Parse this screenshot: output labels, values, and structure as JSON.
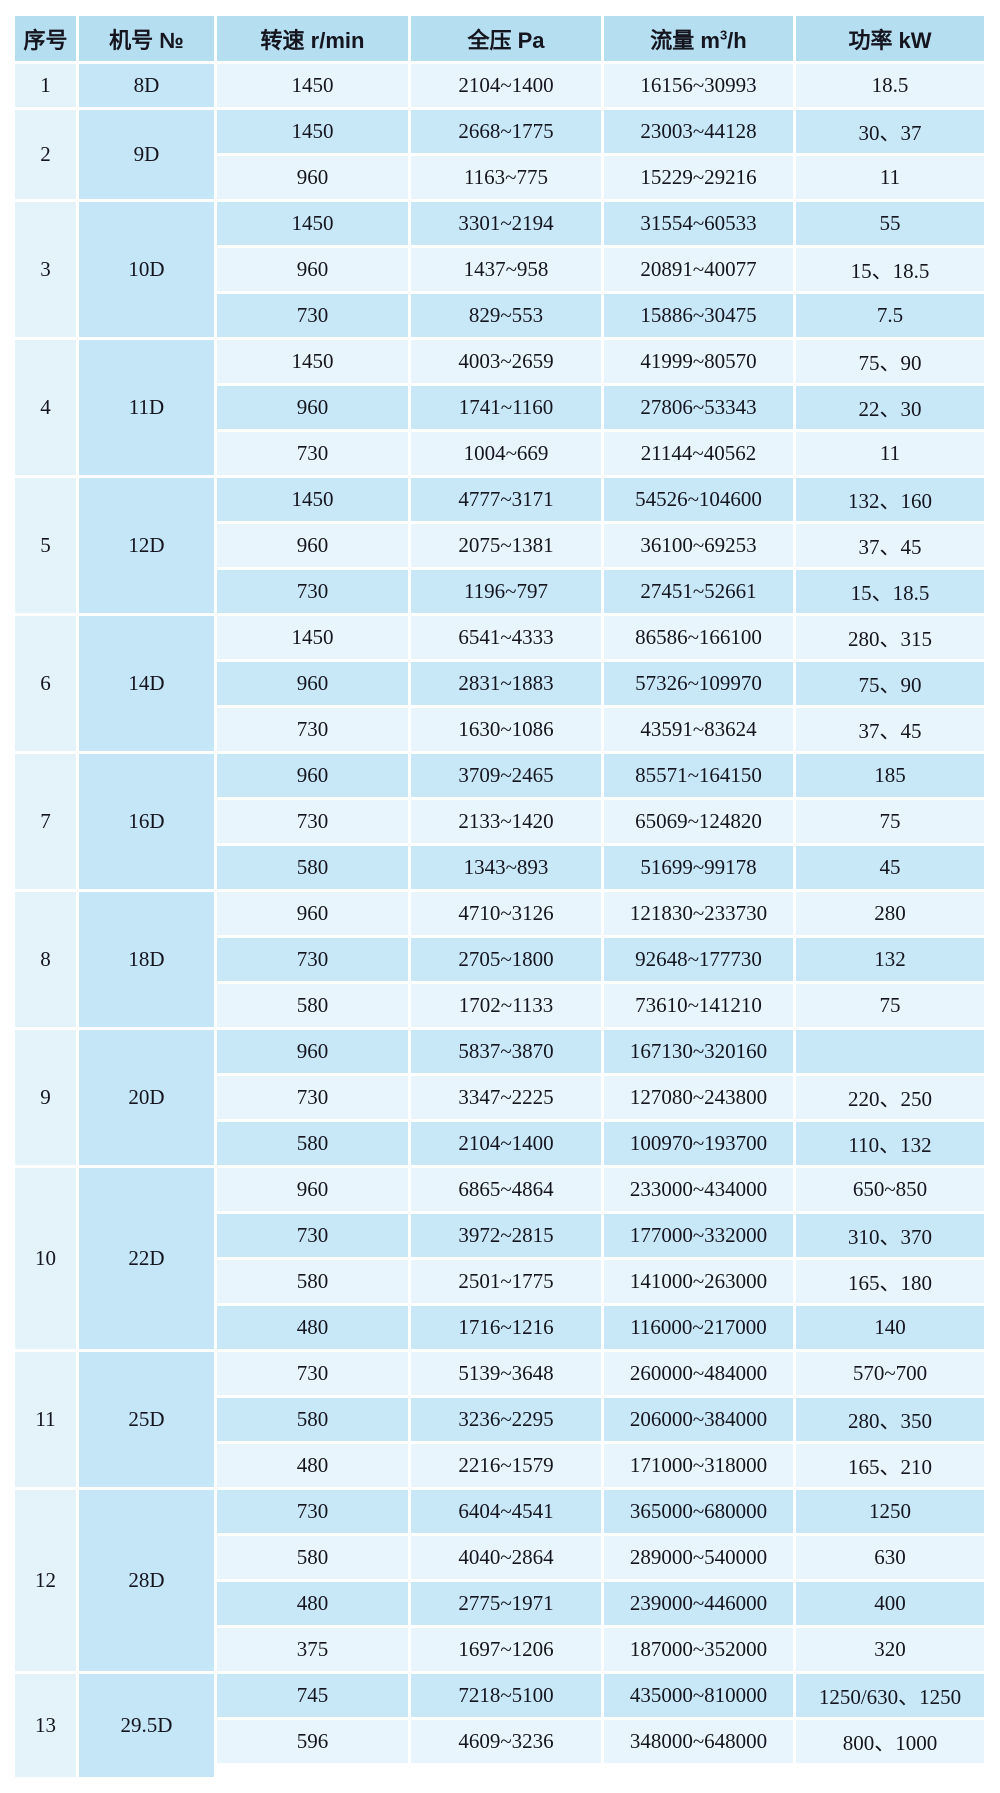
{
  "table": {
    "name": "fan-specification-table",
    "columns": {
      "serial": "序号",
      "model": "机号 №",
      "speed": "转速 r/min",
      "pressure": "全压 Pa",
      "flow_prefix": "流量 m",
      "flow_sup": "3",
      "flow_suffix": "/h",
      "power": "功率 kW"
    },
    "colors": {
      "header_bg": "#b6def1",
      "serial_col_bg": "#e4f2fa",
      "model_col_bg": "#c4e6f7",
      "row_light_bg": "#e9f5fc",
      "row_medium_bg": "#c8e8f8",
      "grid_gap": "#ffffff",
      "text": "#15151f"
    },
    "groups": [
      {
        "serial": "1",
        "model": "8D",
        "rows": [
          {
            "speed": "1450",
            "pressure": "2104~1400",
            "flow": "16156~30993",
            "power": "18.5"
          }
        ]
      },
      {
        "serial": "2",
        "model": "9D",
        "rows": [
          {
            "speed": "1450",
            "pressure": "2668~1775",
            "flow": "23003~44128",
            "power": "30、37"
          },
          {
            "speed": "960",
            "pressure": "1163~775",
            "flow": "15229~29216",
            "power": "11"
          }
        ]
      },
      {
        "serial": "3",
        "model": "10D",
        "rows": [
          {
            "speed": "1450",
            "pressure": "3301~2194",
            "flow": "31554~60533",
            "power": "55"
          },
          {
            "speed": "960",
            "pressure": "1437~958",
            "flow": "20891~40077",
            "power": "15、18.5"
          },
          {
            "speed": "730",
            "pressure": "829~553",
            "flow": "15886~30475",
            "power": "7.5"
          }
        ]
      },
      {
        "serial": "4",
        "model": "11D",
        "rows": [
          {
            "speed": "1450",
            "pressure": "4003~2659",
            "flow": "41999~80570",
            "power": "75、90"
          },
          {
            "speed": "960",
            "pressure": "1741~1160",
            "flow": "27806~53343",
            "power": "22、30"
          },
          {
            "speed": "730",
            "pressure": "1004~669",
            "flow": "21144~40562",
            "power": "11"
          }
        ]
      },
      {
        "serial": "5",
        "model": "12D",
        "rows": [
          {
            "speed": "1450",
            "pressure": "4777~3171",
            "flow": "54526~104600",
            "power": "132、160"
          },
          {
            "speed": "960",
            "pressure": "2075~1381",
            "flow": "36100~69253",
            "power": "37、45"
          },
          {
            "speed": "730",
            "pressure": "1196~797",
            "flow": "27451~52661",
            "power": "15、18.5"
          }
        ]
      },
      {
        "serial": "6",
        "model": "14D",
        "rows": [
          {
            "speed": "1450",
            "pressure": "6541~4333",
            "flow": "86586~166100",
            "power": "280、315"
          },
          {
            "speed": "960",
            "pressure": "2831~1883",
            "flow": "57326~109970",
            "power": "75、90"
          },
          {
            "speed": "730",
            "pressure": "1630~1086",
            "flow": "43591~83624",
            "power": "37、45"
          }
        ]
      },
      {
        "serial": "7",
        "model": "16D",
        "rows": [
          {
            "speed": "960",
            "pressure": "3709~2465",
            "flow": "85571~164150",
            "power": "185"
          },
          {
            "speed": "730",
            "pressure": "2133~1420",
            "flow": "65069~124820",
            "power": "75"
          },
          {
            "speed": "580",
            "pressure": "1343~893",
            "flow": "51699~99178",
            "power": "45"
          }
        ]
      },
      {
        "serial": "8",
        "model": "18D",
        "rows": [
          {
            "speed": "960",
            "pressure": "4710~3126",
            "flow": "121830~233730",
            "power": "280"
          },
          {
            "speed": "730",
            "pressure": "2705~1800",
            "flow": "92648~177730",
            "power": "132"
          },
          {
            "speed": "580",
            "pressure": "1702~1133",
            "flow": "73610~141210",
            "power": "75"
          }
        ]
      },
      {
        "serial": "9",
        "model": "20D",
        "rows": [
          {
            "speed": "960",
            "pressure": "5837~3870",
            "flow": "167130~320160",
            "power": ""
          },
          {
            "speed": "730",
            "pressure": "3347~2225",
            "flow": "127080~243800",
            "power": "220、250"
          },
          {
            "speed": "580",
            "pressure": "2104~1400",
            "flow": "100970~193700",
            "power": "110、132"
          }
        ]
      },
      {
        "serial": "10",
        "model": "22D",
        "rows": [
          {
            "speed": "960",
            "pressure": "6865~4864",
            "flow": "233000~434000",
            "power": "650~850"
          },
          {
            "speed": "730",
            "pressure": "3972~2815",
            "flow": "177000~332000",
            "power": "310、370"
          },
          {
            "speed": "580",
            "pressure": "2501~1775",
            "flow": "141000~263000",
            "power": "165、180"
          },
          {
            "speed": "480",
            "pressure": "1716~1216",
            "flow": "116000~217000",
            "power": "140"
          }
        ]
      },
      {
        "serial": "11",
        "model": "25D",
        "rows": [
          {
            "speed": "730",
            "pressure": "5139~3648",
            "flow": "260000~484000",
            "power": "570~700"
          },
          {
            "speed": "580",
            "pressure": "3236~2295",
            "flow": "206000~384000",
            "power": "280、350"
          },
          {
            "speed": "480",
            "pressure": "2216~1579",
            "flow": "171000~318000",
            "power": "165、210"
          }
        ]
      },
      {
        "serial": "12",
        "model": "28D",
        "rows": [
          {
            "speed": "730",
            "pressure": "6404~4541",
            "flow": "365000~680000",
            "power": "1250"
          },
          {
            "speed": "580",
            "pressure": "4040~2864",
            "flow": "289000~540000",
            "power": "630"
          },
          {
            "speed": "480",
            "pressure": "2775~1971",
            "flow": "239000~446000",
            "power": "400"
          },
          {
            "speed": "375",
            "pressure": "1697~1206",
            "flow": "187000~352000",
            "power": "320"
          }
        ]
      },
      {
        "serial": "13",
        "model": "29.5D",
        "rows": [
          {
            "speed": "745",
            "pressure": "7218~5100",
            "flow": "435000~810000",
            "power": "1250/630、1250"
          },
          {
            "speed": "596",
            "pressure": "4609~3236",
            "flow": "348000~648000",
            "power": "800、1000"
          }
        ]
      }
    ]
  }
}
